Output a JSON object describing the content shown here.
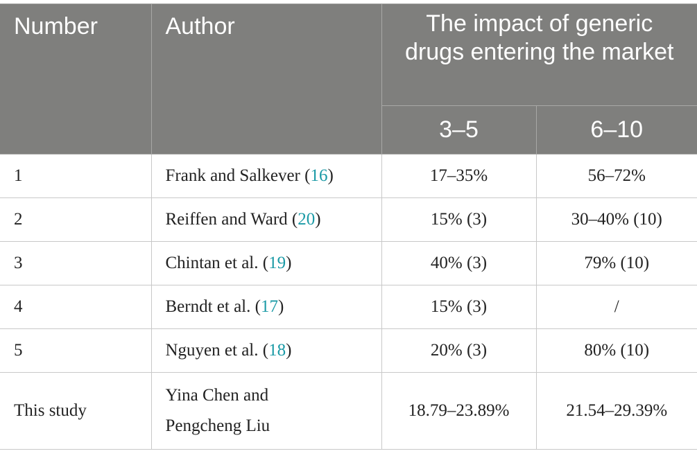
{
  "table": {
    "header": {
      "number": "Number",
      "author": "Author",
      "impact": "The impact of generic drugs entering the market",
      "subheaders": [
        "3–5",
        "6–10"
      ]
    },
    "rows": [
      {
        "number": "1",
        "author": [
          "Frank and Salkever (",
          "16",
          ")"
        ],
        "range_3_5": "17–35%",
        "range_6_10": "56–72%"
      },
      {
        "number": "2",
        "author": [
          "Reiffen and Ward (",
          "20",
          ")"
        ],
        "range_3_5": "15% (3)",
        "range_6_10": "30–40% (10)"
      },
      {
        "number": "3",
        "author": [
          "Chintan et al. (",
          "19",
          ")"
        ],
        "range_3_5": "40% (3)",
        "range_6_10": "79% (10)"
      },
      {
        "number": "4",
        "author": [
          "Berndt et al. (",
          "17",
          ")"
        ],
        "range_3_5": "15% (3)",
        "range_6_10": "/"
      },
      {
        "number": "5",
        "author": [
          "Nguyen et al. (",
          "18",
          ")"
        ],
        "range_3_5": "20% (3)",
        "range_6_10": "80% (10)"
      },
      {
        "number": "This study",
        "author": [
          "Yina Chen and Pengcheng Liu"
        ],
        "range_3_5": "18.79–23.89%",
        "range_6_10": "21.54–29.39%"
      }
    ]
  }
}
